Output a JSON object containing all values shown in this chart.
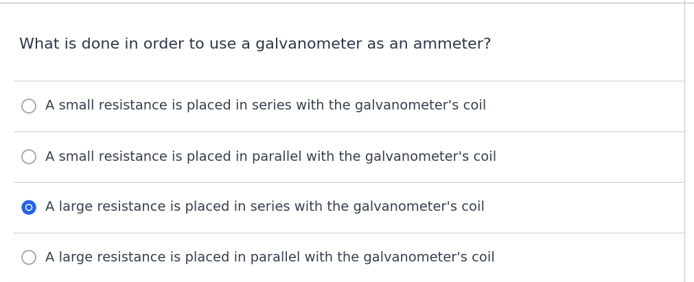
{
  "question": "What is done in order to use a galvanometer as an ammeter?",
  "options": [
    "A small resistance is placed in series with the galvanometer's coil",
    "A small resistance is placed in parallel with the galvanometer's coil",
    "A large resistance is placed in series with the galvanometer's coil",
    "A large resistance is placed in parallel with the galvanometer's coil"
  ],
  "correct_index": 2,
  "background_color": "#ffffff",
  "top_bar_color": "#c8c8c8",
  "divider_color": "#d0d0d0",
  "question_color": "#2d3748",
  "option_text_color": "#374151",
  "circle_edge_color": "#9ca3af",
  "selected_circle_color": "#2563eb",
  "question_fontsize": 16,
  "option_fontsize": 14,
  "right_border_color": "#d0d0d0",
  "fig_width": 10.12,
  "fig_height": 4.12,
  "dpi": 100
}
